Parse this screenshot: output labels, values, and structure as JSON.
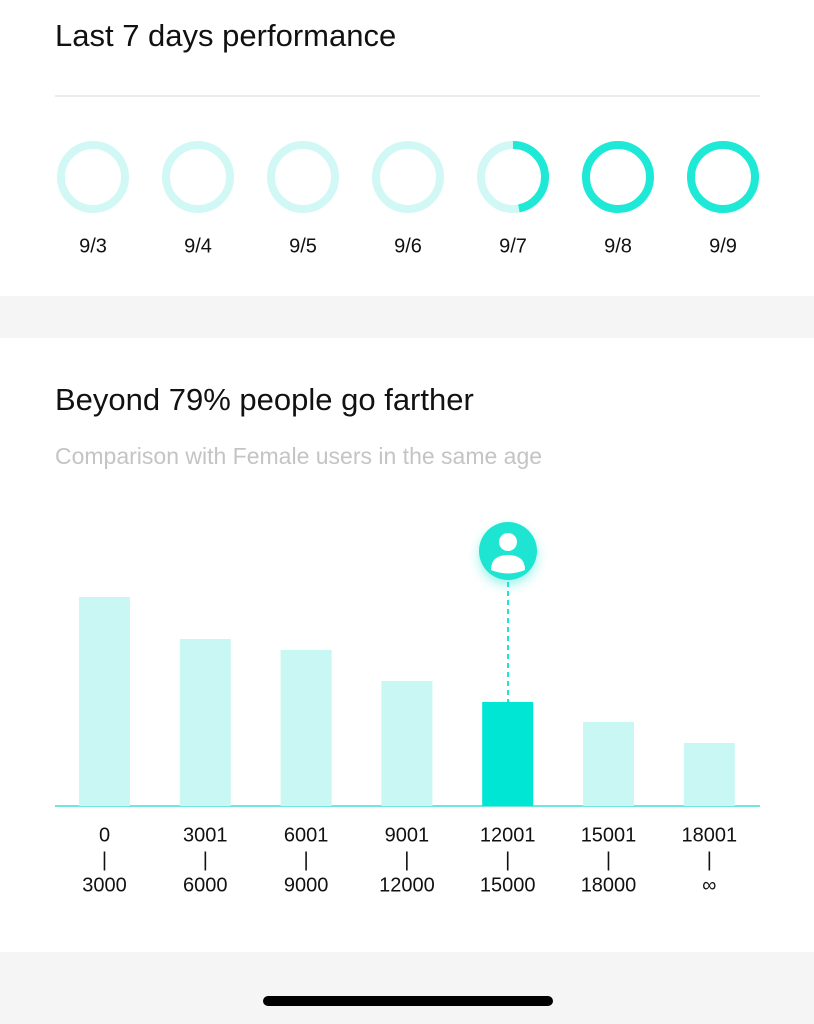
{
  "performance": {
    "title": "Last 7 days performance",
    "chart_data": {
      "type": "ring",
      "categories": [
        "9/3",
        "9/4",
        "9/5",
        "9/6",
        "9/7",
        "9/8",
        "9/9"
      ],
      "values": [
        0,
        0,
        0,
        0,
        47,
        100,
        100
      ],
      "ylim": [
        0,
        100
      ],
      "color": "#1de9d6",
      "track_color": "#d2f8f5"
    }
  },
  "comparison": {
    "title": "Beyond 79% people go farther",
    "subtitle": "Comparison with Female users in the same age",
    "chart_data": {
      "type": "bar",
      "categories": [
        [
          "0",
          "|",
          "3000"
        ],
        [
          "3001",
          "|",
          "6000"
        ],
        [
          "6001",
          "|",
          "9000"
        ],
        [
          "9001",
          "|",
          "12000"
        ],
        [
          "12001",
          "|",
          "15000"
        ],
        [
          "15001",
          "|",
          "18000"
        ],
        [
          "18001",
          "|",
          "∞"
        ]
      ],
      "values": [
        209,
        167,
        156,
        125,
        104,
        84,
        63
      ],
      "color": "#c8f7f4",
      "highlight_index": 4,
      "highlight_color": "#00e6d4"
    }
  }
}
